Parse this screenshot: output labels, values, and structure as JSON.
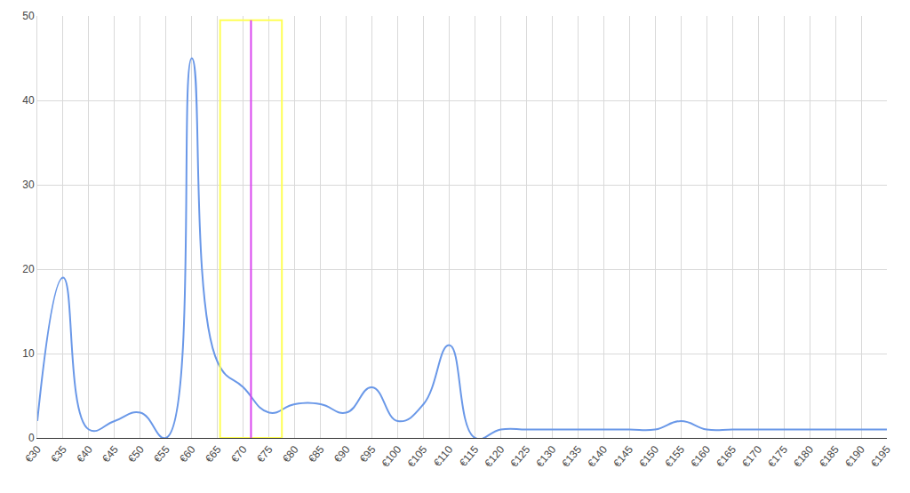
{
  "chart_data": {
    "type": "line",
    "line_style": "spline",
    "color": "#6a98e8",
    "x": [
      30,
      35,
      40,
      45,
      50,
      55,
      60,
      65,
      70,
      75,
      80,
      85,
      90,
      95,
      100,
      105,
      110,
      115,
      120,
      125,
      130,
      135,
      140,
      145,
      150,
      155,
      160,
      165,
      170,
      175,
      180,
      185,
      190,
      195
    ],
    "values": [
      2,
      19,
      1,
      2,
      3,
      0,
      45,
      9,
      6,
      3,
      4,
      4,
      3,
      6,
      2,
      4,
      11,
      0,
      1,
      1,
      1,
      1,
      1,
      1,
      1,
      2,
      1,
      1,
      1,
      1,
      1,
      1,
      1,
      1
    ],
    "xlim": [
      30,
      195
    ],
    "xticks": [
      {
        "value": 30,
        "label": "€30"
      },
      {
        "value": 35,
        "label": "€35"
      },
      {
        "value": 40,
        "label": "€40"
      },
      {
        "value": 45,
        "label": "€45"
      },
      {
        "value": 50,
        "label": "€50"
      },
      {
        "value": 55,
        "label": "€55"
      },
      {
        "value": 60,
        "label": "€60"
      },
      {
        "value": 65,
        "label": "€65"
      },
      {
        "value": 70,
        "label": "€70"
      },
      {
        "value": 75,
        "label": "€75"
      },
      {
        "value": 80,
        "label": "€80"
      },
      {
        "value": 85,
        "label": "€85"
      },
      {
        "value": 90,
        "label": "€90"
      },
      {
        "value": 95,
        "label": "€95"
      },
      {
        "value": 100,
        "label": "€100"
      },
      {
        "value": 105,
        "label": "€105"
      },
      {
        "value": 110,
        "label": "€110"
      },
      {
        "value": 115,
        "label": "€115"
      },
      {
        "value": 120,
        "label": "€120"
      },
      {
        "value": 125,
        "label": "€125"
      },
      {
        "value": 130,
        "label": "€130"
      },
      {
        "value": 135,
        "label": "€135"
      },
      {
        "value": 140,
        "label": "€140"
      },
      {
        "value": 145,
        "label": "€145"
      },
      {
        "value": 150,
        "label": "€150"
      },
      {
        "value": 155,
        "label": "€155"
      },
      {
        "value": 160,
        "label": "€160"
      },
      {
        "value": 165,
        "label": "€165"
      },
      {
        "value": 170,
        "label": "€170"
      },
      {
        "value": 175,
        "label": "€175"
      },
      {
        "value": 180,
        "label": "€180"
      },
      {
        "value": 185,
        "label": "€185"
      },
      {
        "value": 190,
        "label": "€190"
      },
      {
        "value": 195,
        "label": "€195"
      }
    ],
    "ylim": [
      0,
      50
    ],
    "yticks": [
      0,
      10,
      20,
      30,
      40,
      50
    ],
    "grid": true,
    "highlight_box": {
      "x": [
        65.5,
        77.5
      ],
      "y": [
        0,
        49.5
      ],
      "color": "#ffff55"
    },
    "marker_line": {
      "x": 71.5,
      "y": [
        0,
        49.5
      ],
      "color": "#d946ef"
    }
  }
}
